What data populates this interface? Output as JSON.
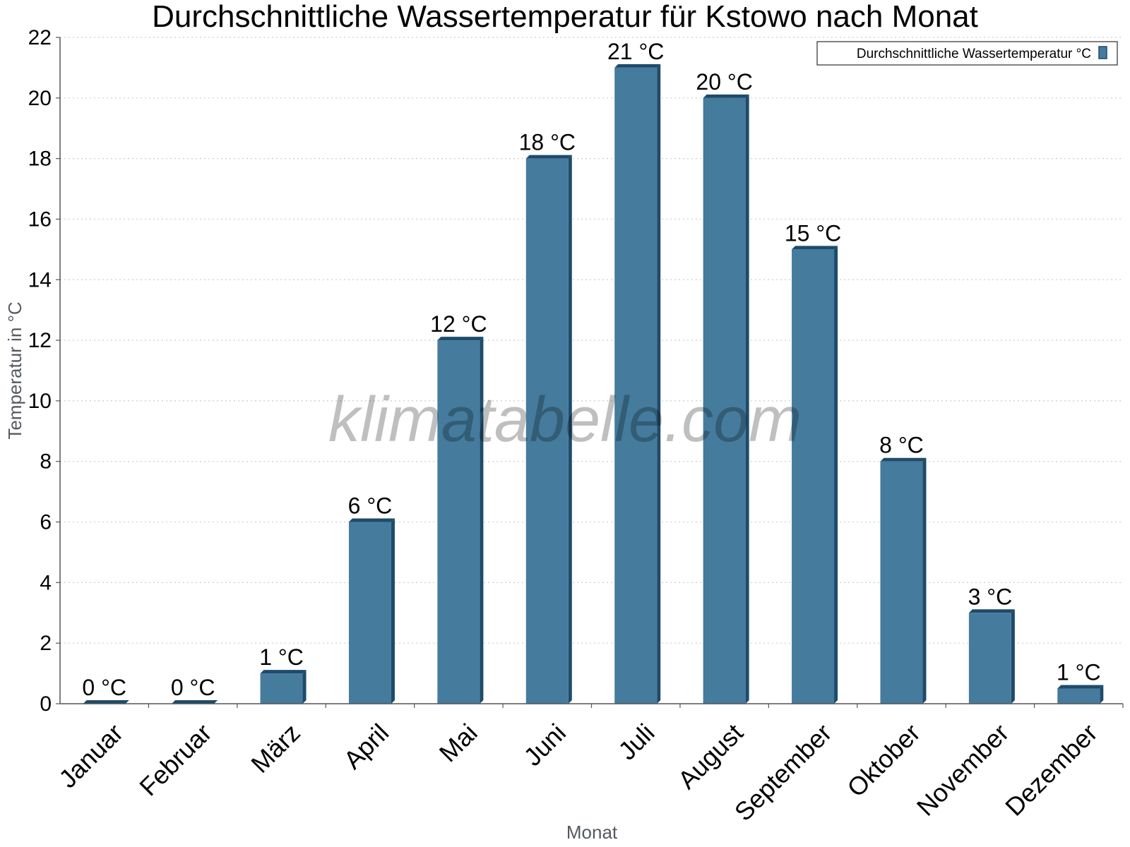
{
  "chart_data": {
    "type": "bar",
    "title": "Durchschnittliche Wassertemperatur für Kstowo nach Monat",
    "xlabel": "Monat",
    "ylabel": "Temperatur in °C",
    "categories": [
      "Januar",
      "Februar",
      "März",
      "April",
      "Mai",
      "Juni",
      "Juli",
      "August",
      "September",
      "Oktober",
      "November",
      "Dezember"
    ],
    "series": [
      {
        "name": "Durchschnittliche Wassertemperatur °C",
        "values": [
          0,
          0,
          1,
          6,
          12,
          18,
          21,
          20,
          15,
          8,
          3,
          0.5
        ]
      }
    ],
    "data_labels": [
      "0 °C",
      "0 °C",
      "1 °C",
      "6 °C",
      "12 °C",
      "18 °C",
      "21 °C",
      "20 °C",
      "15 °C",
      "8 °C",
      "3 °C",
      "1 °C"
    ],
    "yticks": [
      "0",
      "2",
      "4",
      "6",
      "8",
      "10",
      "12",
      "14",
      "16",
      "18",
      "20",
      "22"
    ],
    "ylim": [
      0,
      22
    ],
    "grid": true,
    "legend_position": "top-right",
    "colors": {
      "bar_front": "#457b9d",
      "bar_side": "#1d4b6b",
      "bar_top": "#1d4b6b",
      "grid": "#cccccc",
      "axis": "#555555"
    }
  },
  "watermark": "klimatabelle.com"
}
